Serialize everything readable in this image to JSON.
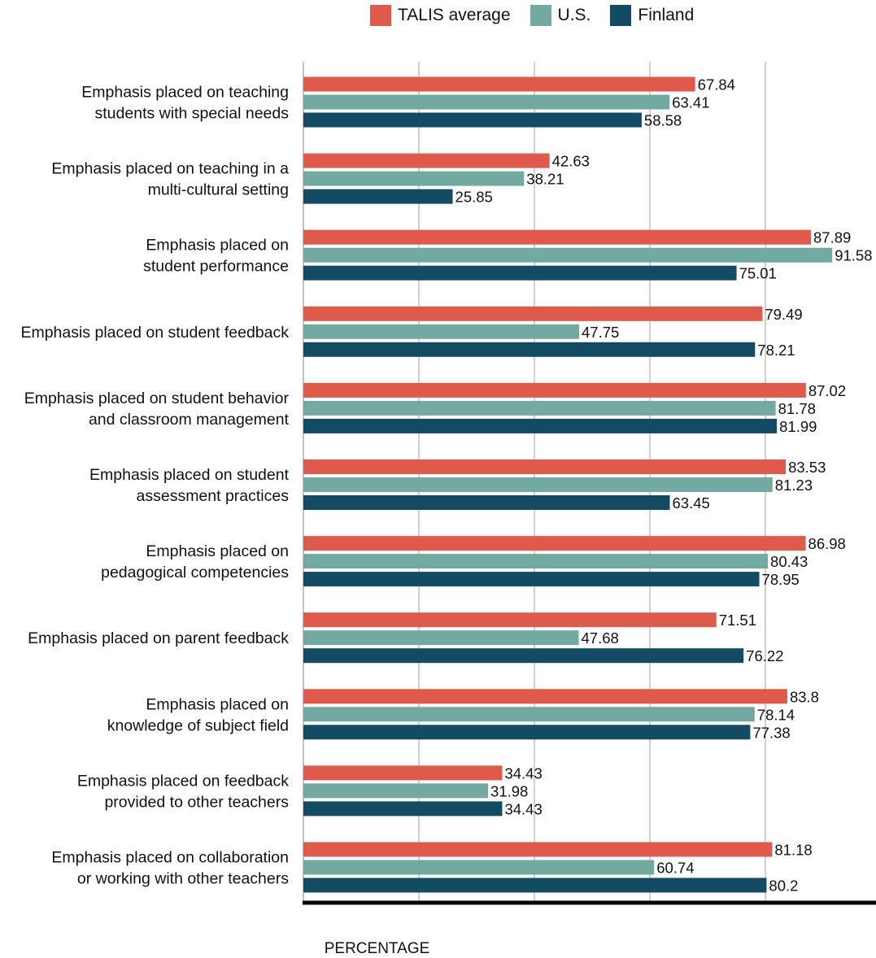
{
  "chart_data": {
    "type": "bar",
    "orientation": "horizontal",
    "xlabel": "PERCENTAGE",
    "xlim": [
      0,
      95
    ],
    "grid": true,
    "legend_position": "top",
    "categories": [
      [
        "Emphasis placed on teaching",
        "students with special needs"
      ],
      [
        "Emphasis placed on teaching in a",
        "multi-cultural setting"
      ],
      [
        "Emphasis placed on",
        "student performance"
      ],
      [
        "Emphasis placed on student feedback"
      ],
      [
        "Emphasis placed on student behavior",
        "and classroom management"
      ],
      [
        "Emphasis placed on student",
        "assessment practices"
      ],
      [
        "Emphasis placed on",
        "pedagogical competencies"
      ],
      [
        "Emphasis placed on parent feedback"
      ],
      [
        "Emphasis placed on",
        "knowledge of subject field"
      ],
      [
        "Emphasis placed on feedback",
        "provided to other teachers"
      ],
      [
        "Emphasis placed on collaboration",
        "or working with other teachers"
      ]
    ],
    "series": [
      {
        "name": "TALIS average",
        "color": "#e05a4b",
        "values": [
          67.84,
          42.63,
          87.89,
          79.49,
          87.02,
          83.53,
          86.98,
          71.51,
          83.8,
          34.43,
          81.18
        ]
      },
      {
        "name": "U.S.",
        "color": "#72a9a0",
        "values": [
          63.41,
          38.21,
          91.58,
          47.75,
          81.78,
          81.23,
          80.43,
          47.68,
          78.14,
          31.98,
          60.74
        ]
      },
      {
        "name": "Finland",
        "color": "#124b63",
        "values": [
          58.58,
          25.85,
          75.01,
          78.21,
          81.99,
          63.45,
          78.95,
          76.22,
          77.38,
          34.43,
          80.2
        ]
      }
    ]
  }
}
